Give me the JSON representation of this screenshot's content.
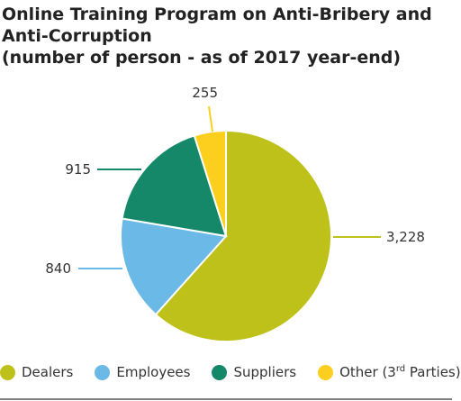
{
  "chart_data": {
    "type": "pie",
    "title": [
      "Online Training Program on Anti-Bribery and",
      "Anti-Corruption",
      "(number of person - as of 2017 year-end)"
    ],
    "categories": [
      "Dealers",
      "Employees",
      "Suppliers",
      "Other (3rd Parties)"
    ],
    "values": [
      3228,
      840,
      915,
      255
    ],
    "value_labels": [
      "3,228",
      "840",
      "915",
      "255"
    ],
    "colors": [
      "#bec11a",
      "#6ab9e6",
      "#148868",
      "#fccf1f"
    ],
    "start_angle_deg": 0,
    "direction": "clockwise",
    "legend_position": "bottom",
    "legend": [
      {
        "name_main": "Other (3",
        "name_sup": "rd",
        "name_tail": " Parties)"
      }
    ]
  }
}
